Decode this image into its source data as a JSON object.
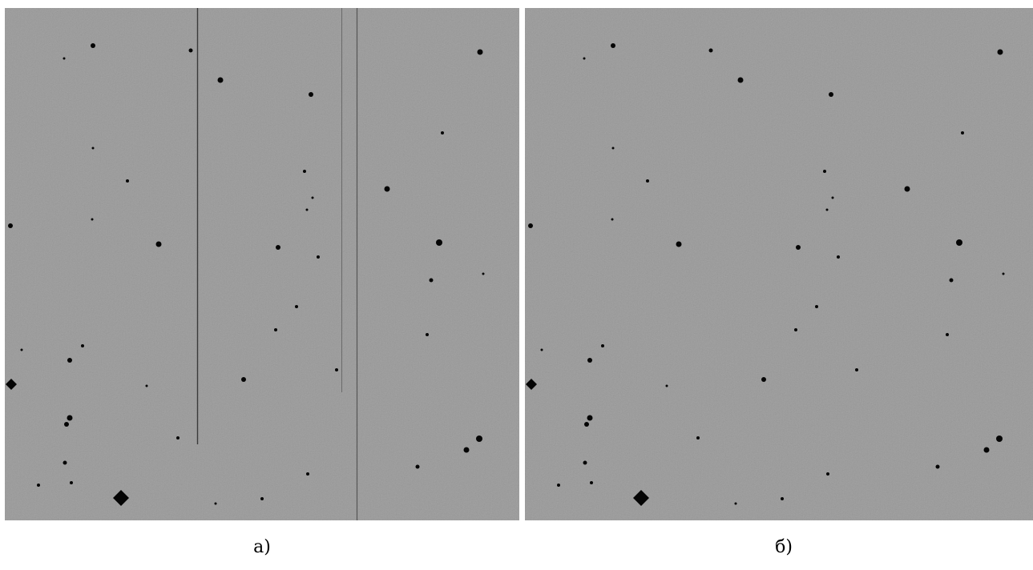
{
  "panels": [
    {
      "label": "а)"
    },
    {
      "label": "б)"
    }
  ]
}
